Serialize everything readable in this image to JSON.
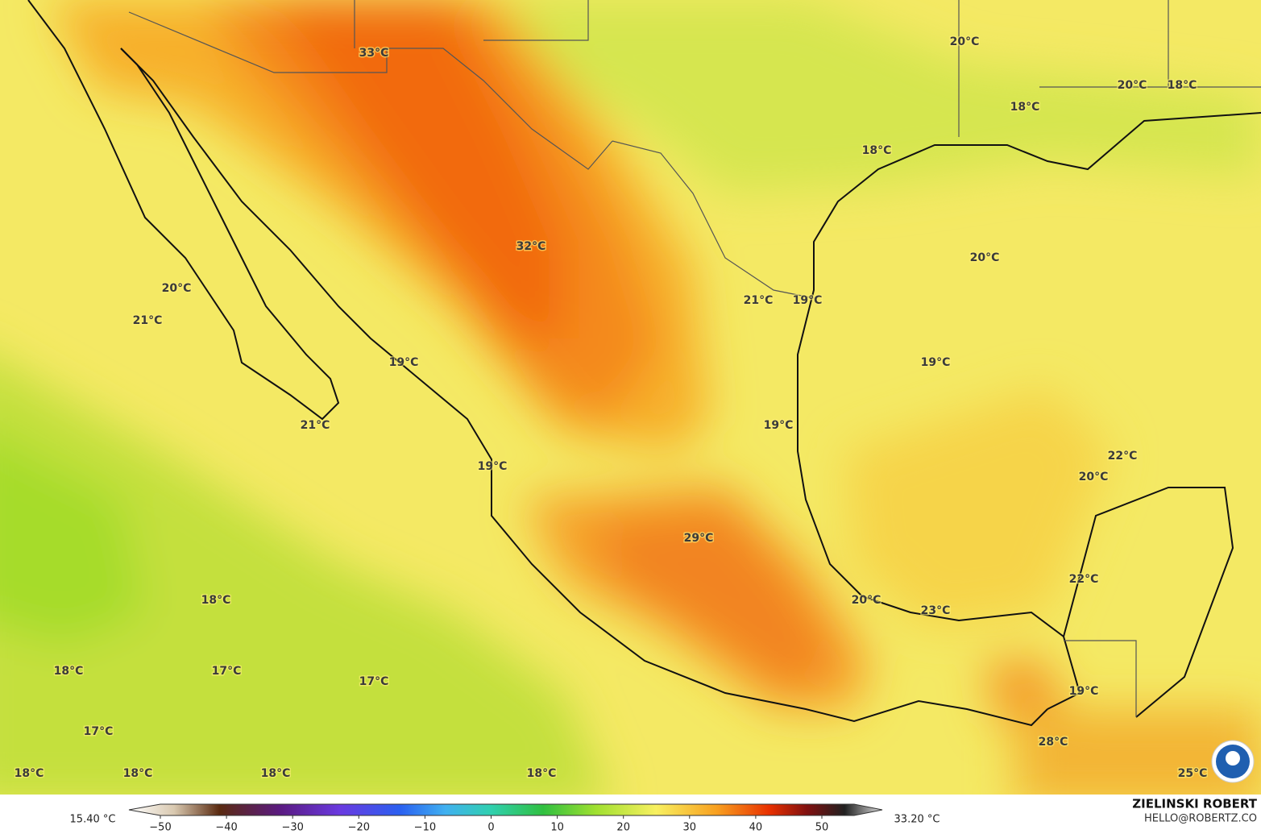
{
  "map": {
    "labels": [
      "33°C",
      "20°C",
      "20°C",
      "18°C",
      "18°C",
      "18°C",
      "32°C",
      "20°C",
      "20°C",
      "21°C",
      "19°C",
      "21°C",
      "19°C",
      "19°C",
      "21°C",
      "19°C",
      "22°C",
      "19°C",
      "20°C",
      "29°C",
      "22°C",
      "18°C",
      "20°C",
      "23°C",
      "18°C",
      "17°C",
      "17°C",
      "19°C",
      "17°C",
      "28°C",
      "18°C",
      "18°C",
      "18°C",
      "18°C",
      "25°C"
    ]
  },
  "colorbar": {
    "min_label": "15.40 °C",
    "max_label": "33.20 °C",
    "range": [
      -50,
      50
    ],
    "ticks": [
      {
        "value": -50,
        "label": "−50"
      },
      {
        "value": -40,
        "label": "−40"
      },
      {
        "value": -30,
        "label": "−30"
      },
      {
        "value": -20,
        "label": "−20"
      },
      {
        "value": -10,
        "label": "−10"
      },
      0,
      10,
      20,
      30,
      40,
      50
    ]
  },
  "credit": {
    "name": "ZIELINSKI ROBERT",
    "email": "HELLO@ROBERTZ.CO"
  }
}
